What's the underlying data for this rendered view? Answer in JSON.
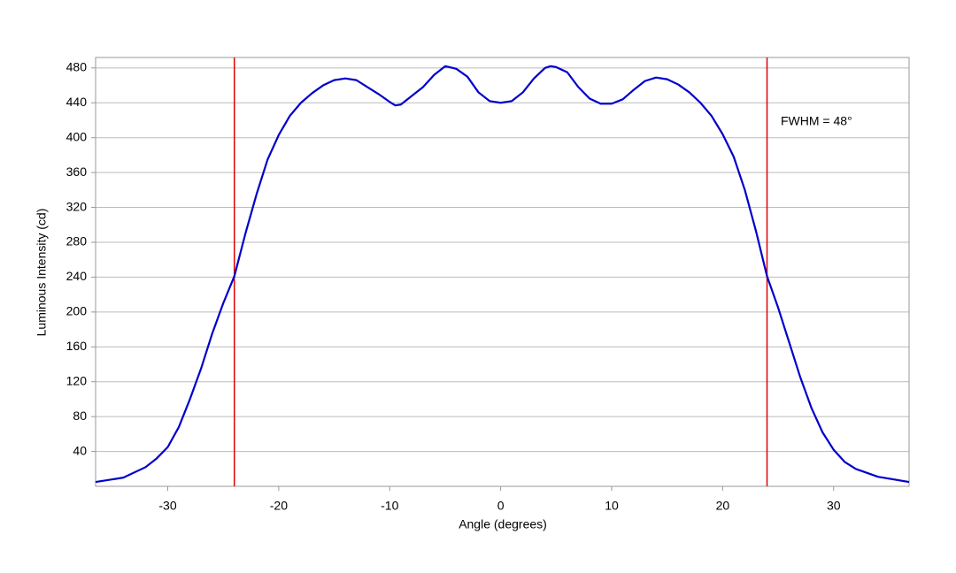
{
  "chart_data": {
    "type": "line",
    "xlabel": "Angle (degrees)",
    "ylabel": "Luminous Intensity (cd)",
    "annotation": "FWHM = 48°",
    "x": [
      -36.5,
      -34,
      -32,
      -31,
      -30,
      -29,
      -28,
      -27,
      -26,
      -25,
      -24,
      -23,
      -22,
      -21,
      -20,
      -19,
      -18,
      -17,
      -16,
      -15,
      -14,
      -13,
      -12,
      -11,
      -10,
      -9.5,
      -9,
      -8,
      -7,
      -6,
      -5,
      -4,
      -3,
      -2,
      -1,
      0,
      1,
      2,
      3,
      4,
      4.5,
      5,
      6,
      7,
      8,
      9,
      10,
      11,
      12,
      13,
      14,
      15,
      16,
      17,
      18,
      19,
      20,
      21,
      22,
      23,
      24,
      25,
      26,
      27,
      28,
      29,
      30,
      31,
      32,
      34,
      36.8
    ],
    "series": [
      {
        "color": "#0000cc",
        "values": [
          5,
          10,
          22,
          32,
          45,
          68,
          100,
          135,
          175,
          210,
          241,
          290,
          335,
          375,
          403,
          425,
          440,
          451,
          460,
          466,
          468,
          466,
          458,
          450,
          441,
          437,
          438,
          448,
          458,
          472,
          482,
          479,
          470,
          452,
          442,
          440,
          442,
          452,
          468,
          480,
          482,
          481,
          475,
          458,
          445,
          439,
          439,
          444,
          455,
          465,
          469,
          467,
          461,
          452,
          440,
          425,
          404,
          378,
          340,
          293,
          241,
          205,
          165,
          125,
          90,
          62,
          42,
          28,
          20,
          11,
          5
        ]
      }
    ],
    "vlines": [
      -24,
      24
    ],
    "vline_color": "#e00000",
    "xlim": [
      -36.5,
      36.8
    ],
    "xticks": [
      -30,
      -20,
      -10,
      0,
      10,
      20,
      30
    ],
    "ylim": [
      0,
      492
    ],
    "yticks": [
      40,
      80,
      120,
      160,
      200,
      240,
      280,
      320,
      360,
      400,
      440,
      480
    ],
    "grid": true
  }
}
